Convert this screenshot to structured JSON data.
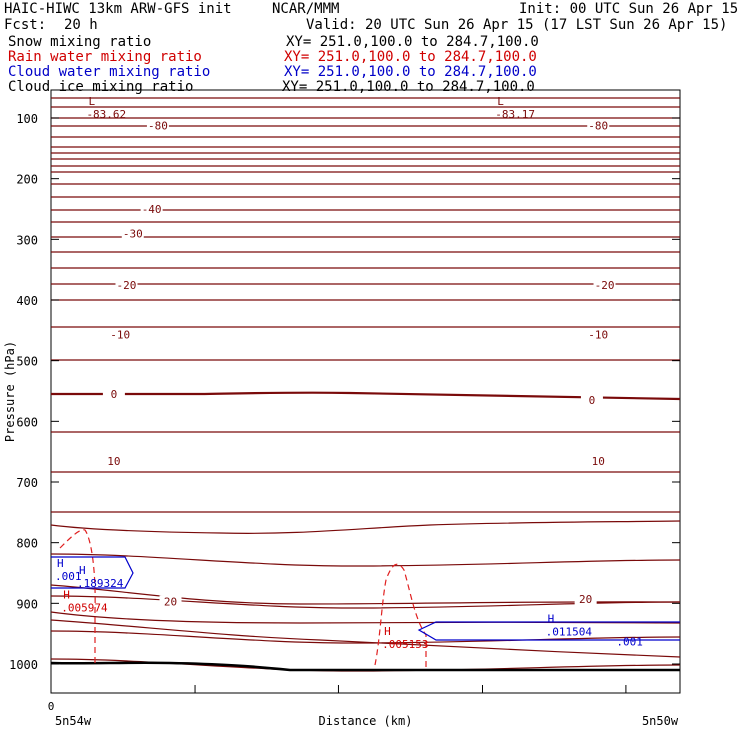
{
  "header": {
    "model": "HAIC-HIWC 13km ARW-GFS init",
    "org": "NCAR/MMM",
    "init": "Init: 00 UTC Sun 26 Apr 15",
    "fcst_label": "Fcst:",
    "fcst_value": "20 h",
    "valid": "Valid: 20 UTC Sun 26 Apr 15 (17 LST Sun 26 Apr 15)"
  },
  "fields": [
    {
      "name": "Snow mixing ratio",
      "xy": "XY= 251.0,100.0 to 284.7,100.0",
      "color": "#000000"
    },
    {
      "name": "Rain water mixing ratio",
      "xy": "XY= 251.0,100.0 to 284.7,100.0",
      "color": "#d00000"
    },
    {
      "name": "Cloud water mixing ratio",
      "xy": "XY= 251.0,100.0 to 284.7,100.0",
      "color": "#0000c8"
    },
    {
      "name": "Cloud ice mixing ratio",
      "xy": "XY= 251.0,100.0 to 284.7,100.0",
      "color": "#000000"
    }
  ],
  "colors": {
    "temperature": "#7a0a0a",
    "rain": "#e02020",
    "cloud_water": "#0000cc",
    "axis": "#000000"
  },
  "chart_data": {
    "type": "cross-section contour",
    "xlabel": "Distance (km)",
    "ylabel": "Pressure (hPa)",
    "x_tick_start": "0",
    "x_left_label": "5n54w",
    "x_right_label": "5n50w",
    "y_ticks": [
      100,
      200,
      300,
      400,
      500,
      600,
      700,
      800,
      900,
      1000
    ],
    "ylim": [
      1050,
      60
    ],
    "temperature_contour_labels": [
      {
        "text": "-80",
        "x": 0.17,
        "p": 112
      },
      {
        "text": "-80",
        "x": 0.87,
        "p": 112
      },
      {
        "text": "-40",
        "x": 0.16,
        "p": 250
      },
      {
        "text": "-30",
        "x": 0.13,
        "p": 290
      },
      {
        "text": "-20",
        "x": 0.12,
        "p": 375
      },
      {
        "text": "-20",
        "x": 0.88,
        "p": 375
      },
      {
        "text": "-10",
        "x": 0.11,
        "p": 457
      },
      {
        "text": "-10",
        "x": 0.87,
        "p": 457
      },
      {
        "text": "0",
        "x": 0.1,
        "p": 555
      },
      {
        "text": "0",
        "x": 0.86,
        "p": 565
      },
      {
        "text": "10",
        "x": 0.1,
        "p": 665
      },
      {
        "text": "10",
        "x": 0.87,
        "p": 665
      },
      {
        "text": "20",
        "x": 0.19,
        "p": 897
      },
      {
        "text": "20",
        "x": 0.85,
        "p": 893
      }
    ],
    "extrema_labels": [
      {
        "kind": "L",
        "value": "-83.62",
        "x": 0.05,
        "p": 92,
        "color": "#7a0a0a"
      },
      {
        "kind": "L",
        "value": "-83.17",
        "x": 0.7,
        "p": 92,
        "color": "#7a0a0a"
      },
      {
        "kind": "H",
        "value": ".005974",
        "x": 0.01,
        "p": 905,
        "color": "#d00000"
      },
      {
        "kind": "H",
        "value": ".005153",
        "x": 0.52,
        "p": 965,
        "color": "#d00000"
      },
      {
        "kind": "H",
        "value": ".001",
        "x": 0.0,
        "p": 853,
        "color": "#0000cc"
      },
      {
        "kind": "H",
        "value": ".189324",
        "x": 0.035,
        "p": 865,
        "color": "#0000cc"
      },
      {
        "kind": "H",
        "value": ".011504",
        "x": 0.78,
        "p": 945,
        "color": "#0000cc"
      }
    ],
    "extra_contour_labels": [
      {
        "text": ".001",
        "x": 0.92,
        "p": 963,
        "color": "#0000cc"
      }
    ]
  }
}
